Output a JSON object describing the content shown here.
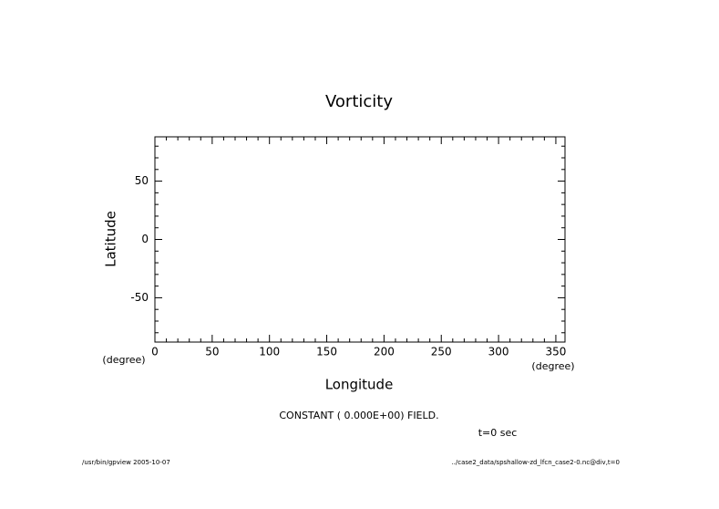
{
  "chart_data": {
    "type": "contour",
    "title": "Vorticity",
    "x_label": "Longitude",
    "x_unit": "(degree)",
    "y_label": "Latitude",
    "y_unit": "(degree)",
    "xlim": [
      0,
      358
    ],
    "xticks": [
      0,
      50,
      100,
      150,
      200,
      250,
      300,
      350
    ],
    "xminorticks": [
      10,
      20,
      30,
      40,
      60,
      70,
      80,
      90,
      110,
      120,
      130,
      140,
      160,
      170,
      180,
      190,
      210,
      220,
      230,
      240,
      260,
      270,
      280,
      290,
      310,
      320,
      330,
      340
    ],
    "ylim": [
      -88,
      88
    ],
    "yticks": [
      -50,
      0,
      50
    ],
    "yminorticks": [
      -80,
      -70,
      -60,
      -40,
      -30,
      -20,
      -10,
      10,
      20,
      30,
      40,
      60,
      70,
      80
    ],
    "note": "CONSTANT ( 0.000E+00) FIELD.",
    "time_label": "t=0 sec",
    "footer_left": "/usr/bin/gpview  2005-10-07",
    "footer_right": "../case2_data/spshallow-zd_lfcn_case2-0.nc@div,t=0"
  }
}
